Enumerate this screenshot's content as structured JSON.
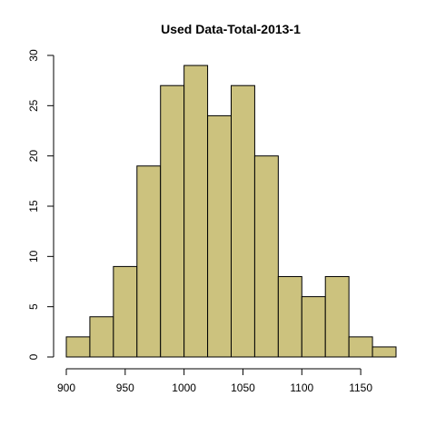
{
  "chart_data": {
    "type": "bar",
    "title": "Used Data-Total-2013-1",
    "xlabel": "",
    "ylabel": "",
    "bin_edges": [
      900,
      920,
      940,
      960,
      980,
      1000,
      1020,
      1040,
      1060,
      1080,
      1100,
      1120,
      1140,
      1160,
      1180
    ],
    "values": [
      2,
      4,
      9,
      19,
      27,
      29,
      24,
      27,
      20,
      8,
      6,
      8,
      2,
      1
    ],
    "xlim": [
      900,
      1180
    ],
    "ylim": [
      0,
      30
    ],
    "x_ticks": [
      900,
      950,
      1000,
      1050,
      1100,
      1150
    ],
    "y_ticks": [
      0,
      5,
      10,
      15,
      20,
      25,
      30
    ],
    "bar_color": "#CCC27E",
    "grid": false
  }
}
